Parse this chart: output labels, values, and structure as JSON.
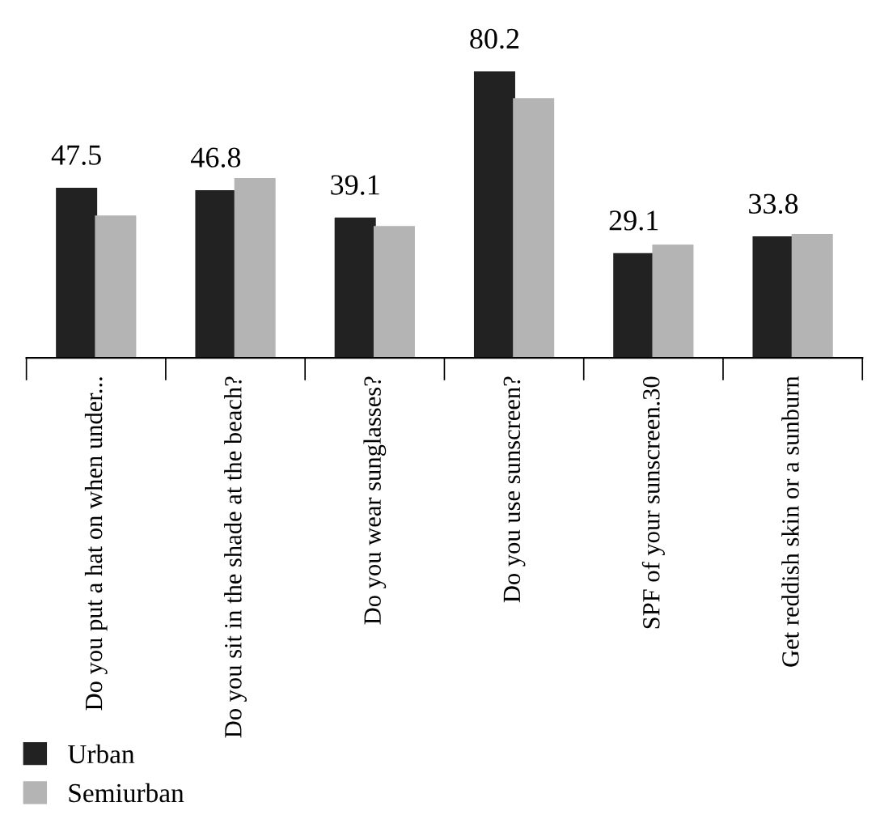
{
  "chart_data": {
    "type": "bar",
    "categories": [
      "Do you put a hat on when under...",
      "Do you sit in the shade at the beach?",
      "Do you wear sunglasses?",
      "Do you use sunscreen?",
      "SPF of your sunscreen.30",
      "Get reddish skin or a sunburn"
    ],
    "series": [
      {
        "name": "Urban",
        "color": "#222222",
        "values": [
          47.5,
          46.8,
          39.1,
          80.2,
          29.1,
          33.8
        ],
        "value_labels": [
          "47.5",
          "46.8",
          "39.1",
          "80.2",
          "29.1",
          "33.8"
        ]
      },
      {
        "name": "Semiurban",
        "color": "#b4b4b4",
        "values": [
          39.7,
          50.2,
          36.7,
          72.7,
          31.5,
          34.5
        ]
      }
    ],
    "legend": "bottom left",
    "grid": false
  }
}
